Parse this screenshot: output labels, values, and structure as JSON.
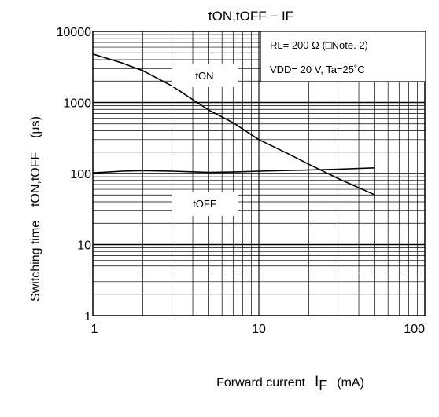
{
  "chart_data": {
    "type": "line",
    "title": "tON,tOFF − IF",
    "xlabel": "Forward current",
    "xlabel_symbol": "I",
    "xlabel_sub": "F",
    "xlabel_unit": "(mA)",
    "ylabel": "Switching time    tON,tOFF    (µs)",
    "x_scale": "log",
    "y_scale": "log",
    "xlim": [
      1,
      100
    ],
    "ylim": [
      1,
      10000
    ],
    "x_ticks": [
      "1",
      "10",
      "100"
    ],
    "y_ticks": [
      "10000",
      "1000",
      "100",
      "10",
      "1"
    ],
    "grid": true,
    "legend": "none",
    "conditions": [
      "RL= 200 Ω (□Note. 2)",
      "VDD= 20 V, Ta=25˚C"
    ],
    "series": [
      {
        "name": "tON",
        "color": "#000000",
        "points": [
          [
            1,
            4800
          ],
          [
            1.5,
            3600
          ],
          [
            2,
            2800
          ],
          [
            3,
            1700
          ],
          [
            4,
            1100
          ],
          [
            5,
            780
          ],
          [
            7,
            520
          ],
          [
            10,
            300
          ],
          [
            15,
            190
          ],
          [
            20,
            135
          ],
          [
            30,
            85
          ],
          [
            50,
            50
          ]
        ]
      },
      {
        "name": "tOFF",
        "color": "#000000",
        "points": [
          [
            1,
            102
          ],
          [
            1.5,
            108
          ],
          [
            2,
            110
          ],
          [
            3,
            108
          ],
          [
            5,
            104
          ],
          [
            7,
            105
          ],
          [
            10,
            108
          ],
          [
            20,
            112
          ],
          [
            30,
            115
          ],
          [
            50,
            120
          ]
        ]
      }
    ]
  }
}
